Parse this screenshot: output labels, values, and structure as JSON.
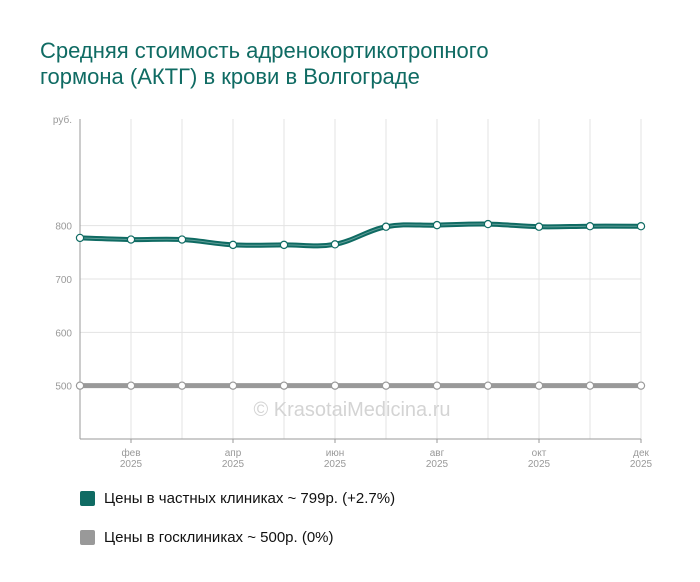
{
  "title": {
    "line1": "Средняя стоимость адренокортикотропного",
    "line2": "гормона (АКТГ) в крови в Волгограде"
  },
  "watermark": "© KrasotaiMedicina.ru",
  "chart_data": {
    "type": "line",
    "title": "Средняя стоимость адренокортикотропного гормона (АКТГ) в крови в Волгограде",
    "ylabel": "руб.",
    "ylim": [
      400,
      1000
    ],
    "yticks": [
      500,
      600,
      700,
      800
    ],
    "grid": true,
    "points_per_year": 12,
    "x_ticks": [
      {
        "index": 1,
        "month": "фев",
        "year": "2025"
      },
      {
        "index": 3,
        "month": "апр",
        "year": "2025"
      },
      {
        "index": 5,
        "month": "июн",
        "year": "2025"
      },
      {
        "index": 7,
        "month": "авг",
        "year": "2025"
      },
      {
        "index": 9,
        "month": "окт",
        "year": "2025"
      },
      {
        "index": 11,
        "month": "дек",
        "year": "2025"
      }
    ],
    "series": [
      {
        "name": "Цены в частных клиниках",
        "color": "#0f6b63",
        "values": [
          777,
          774,
          774,
          764,
          764,
          765,
          798,
          801,
          803,
          798,
          799,
          799
        ]
      },
      {
        "name": "Цены в госклиниках",
        "color": "#999999",
        "values": [
          500,
          500,
          500,
          500,
          500,
          500,
          500,
          500,
          500,
          500,
          500,
          500
        ]
      }
    ],
    "legend": [
      "Цены в частных клиниках ~ 799р. (+2.7%)",
      "Цены в госклиниках ~ 500р. (0%)"
    ]
  }
}
